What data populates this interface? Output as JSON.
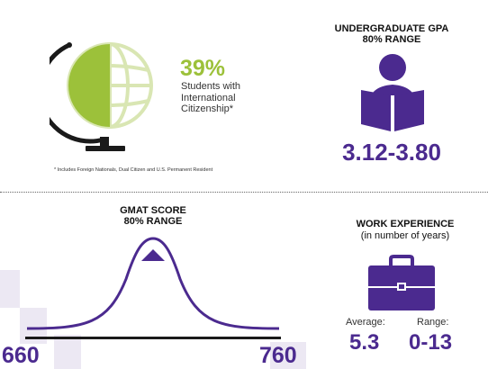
{
  "international": {
    "percent": "39%",
    "description": "Students with International Citizenship*",
    "footnote": "* Includes Foreign Nationals, Dual Citizen and U.S. Permanent Resident",
    "share": 0.39
  },
  "gpa": {
    "title_line1": "UNDERGRADUATE GPA",
    "title_line2": "80% RANGE",
    "range": "3.12-3.80"
  },
  "gmat": {
    "title_line1": "GMAT SCORE",
    "title_line2": "80% RANGE",
    "low": "660",
    "high": "760"
  },
  "work": {
    "title": "WORK EXPERIENCE",
    "subtitle": "(in number of years)",
    "average_label": "Average:",
    "average_value": "5.3",
    "range_label": "Range:",
    "range_value": "0-13"
  },
  "colors": {
    "purple": "#4b2a8f",
    "green": "#9cc13a",
    "globe_line": "#d9e6b3",
    "square_light": "#ece8f3"
  },
  "icons": {
    "globe": "globe-icon",
    "reader": "reader-icon",
    "bell_curve": "bell-curve-icon",
    "briefcase": "briefcase-icon"
  }
}
